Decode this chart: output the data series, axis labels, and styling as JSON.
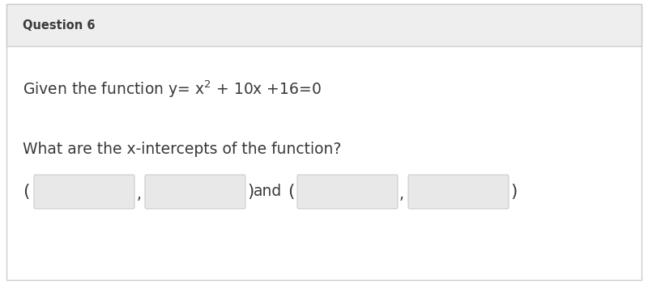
{
  "header_text": "Question 6",
  "header_bg": "#eeeeee",
  "body_bg": "#ffffff",
  "border_color": "#cccccc",
  "line1": "Given the function y= x$^2$ + 10x +16=0",
  "line2": "What are the x-intercepts of the function?",
  "box_bg": "#e8e8e8",
  "box_border": "#cccccc",
  "text_color": "#3a3a3a",
  "font_size_header": 10.5,
  "font_size_body": 13.5,
  "figsize": [
    8.0,
    3.51
  ],
  "dpi": 100
}
